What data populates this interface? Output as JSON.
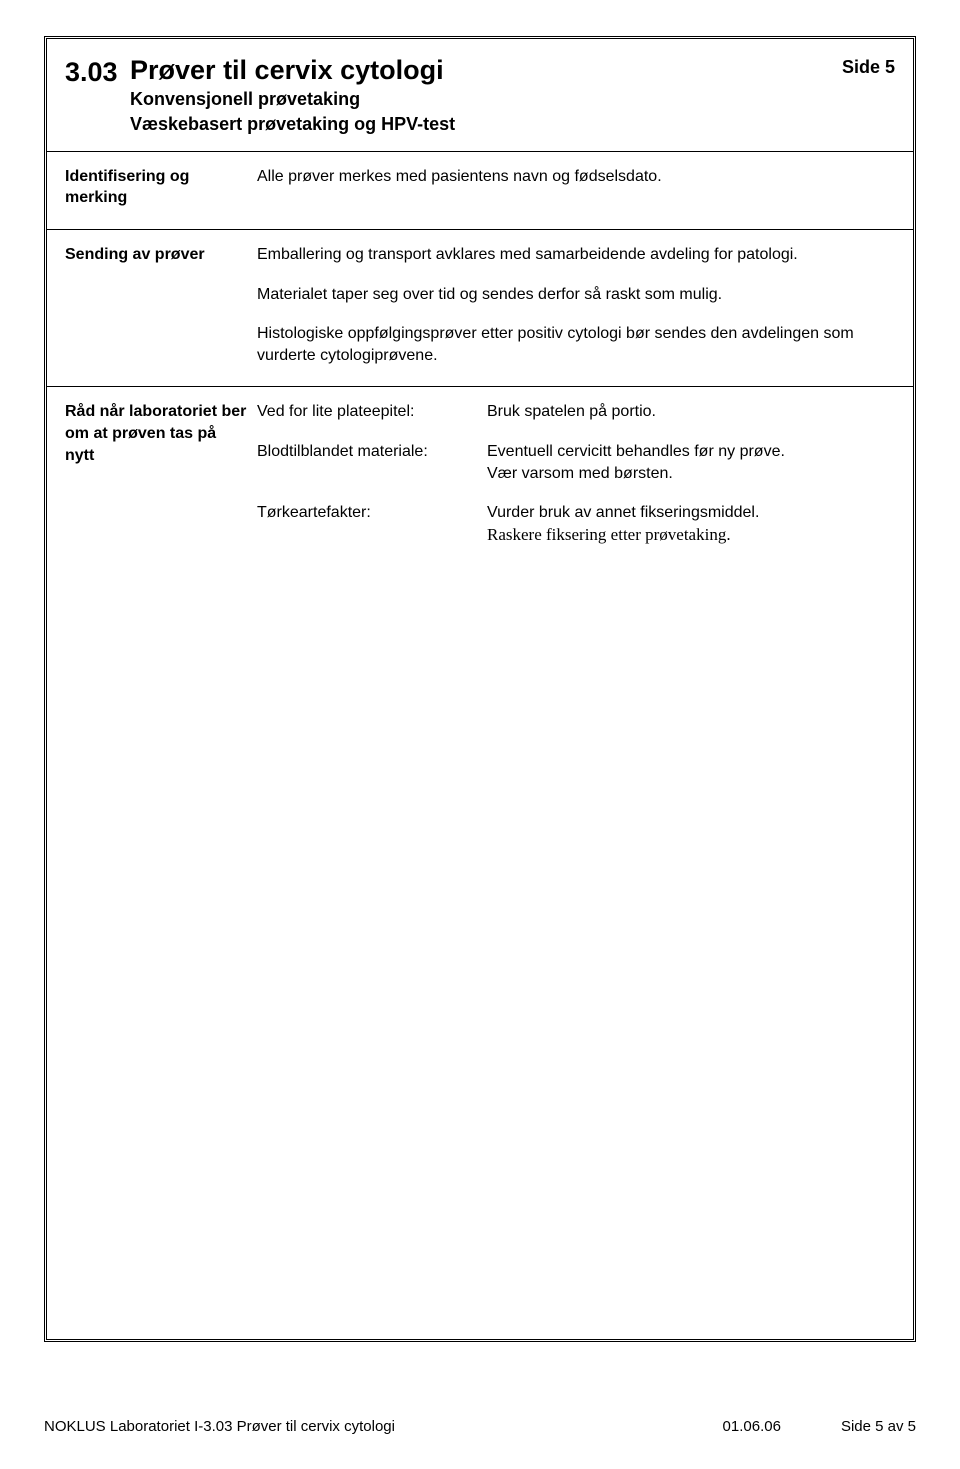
{
  "header": {
    "doc_number": "3.03",
    "title": "Prøver til cervix cytologi",
    "subtitle_1": "Konvensjonell prøvetaking",
    "subtitle_2": "Væskebasert prøvetaking og HPV-test",
    "page_label": "Side 5"
  },
  "sections": {
    "ident": {
      "label": "Identifisering og merking",
      "text": "Alle prøver merkes med pasientens navn og fødselsdato."
    },
    "sending": {
      "label": "Sending av prøver",
      "p1": "Emballering og transport avklares med samarbeidende avdeling for patologi.",
      "p2": "Materialet taper seg over tid og sendes derfor så raskt som mulig.",
      "p3": "Histologiske oppfølgingsprøver etter positiv cytologi bør sendes den avdelingen som vurderte cytologiprøvene."
    },
    "advice": {
      "label": "Råd når laboratoriet ber om at prøven tas på nytt",
      "rows": [
        {
          "a": "Ved for lite plateepitel:",
          "b": "Bruk spatelen på portio."
        },
        {
          "a": "Blodtilblandet materiale:",
          "b": "Eventuell cervicitt behandles før ny prøve.\nVær varsom med børsten."
        },
        {
          "a": "Tørkeartefakter:",
          "b": "Vurder bruk av annet fikseringsmiddel.",
          "b_serif": "Raskere fiksering etter prøvetaking."
        }
      ]
    }
  },
  "footer": {
    "left": "NOKLUS Laboratoriet I-3.03 Prøver til cervix cytologi",
    "mid": "01.06.06",
    "right": "Side 5 av 5"
  }
}
